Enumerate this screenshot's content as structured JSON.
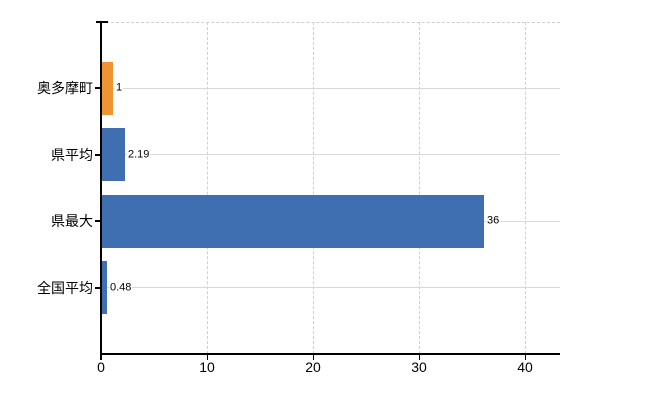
{
  "chart_data": {
    "type": "bar",
    "orientation": "horizontal",
    "title": "",
    "xlabel": "",
    "ylabel": "",
    "categories": [
      "奥多摩町",
      "県平均",
      "県最大",
      "全国平均"
    ],
    "values": [
      1,
      2.19,
      36,
      0.48
    ],
    "value_labels": [
      "1",
      "2.19",
      "36",
      "0.48"
    ],
    "bar_colors": [
      "#EE9432",
      "#3F6FB0",
      "#3F6FB0",
      "#3F6FB0"
    ],
    "x_ticks": [
      0,
      10,
      20,
      30,
      40
    ],
    "x_tick_labels": [
      "0",
      "10",
      "20",
      "30",
      "40"
    ],
    "xlim": [
      0,
      43.3
    ],
    "legend_position": "none",
    "grid": {
      "vertical": "dashed",
      "horizontal": "solid-through-bar-centers"
    }
  },
  "colors": {
    "background": "#ffffff",
    "bar_orange": "#EE9432",
    "bar_blue": "#3F6FB0",
    "axis": "#000000",
    "gridline_solid": "#d9d9d9",
    "gridline_dashed": "#cfcfcf",
    "text": "#000000"
  }
}
